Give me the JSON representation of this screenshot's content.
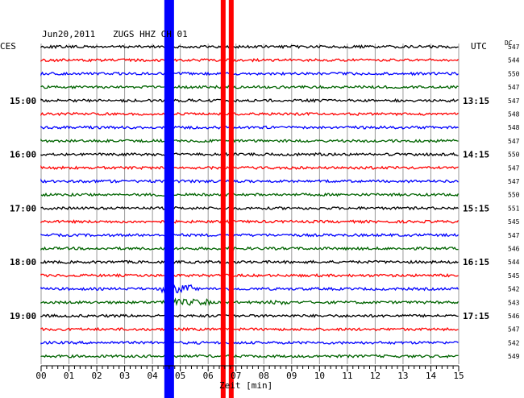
{
  "header": {
    "date": "Jun20,2011",
    "station": "ZUGS HHZ CH 01",
    "left_zone": "CES",
    "right_zone": "UTC",
    "dc_label": "DC"
  },
  "chart_data": {
    "type": "line",
    "title": "Jun20,2011   ZUGS HHZ CH 01",
    "xlabel": "Zeit [min]",
    "xlim": [
      0,
      15
    ],
    "x_ticks": [
      "00",
      "01",
      "02",
      "03",
      "04",
      "05",
      "06",
      "07",
      "08",
      "09",
      "10",
      "11",
      "12",
      "13",
      "14",
      "15"
    ],
    "trace_colors": [
      "#000000",
      "#ff0000",
      "#0000ff",
      "#006400"
    ],
    "left_time_labels": [
      "15:00",
      "16:00",
      "17:00",
      "18:00",
      "19:00"
    ],
    "right_time_labels": [
      "13:15",
      "14:15",
      "15:15",
      "16:15",
      "17:15"
    ],
    "dc_offsets": [
      "547",
      "544",
      "550",
      "547",
      "547",
      "548",
      "548",
      "547",
      "550",
      "547",
      "547",
      "550",
      "551",
      "545",
      "547",
      "546",
      "544",
      "545",
      "542",
      "543",
      "546",
      "547",
      "542",
      "549"
    ],
    "events": [
      {
        "minute": 4.6,
        "color": "#0000ff"
      },
      {
        "minute": 6.8,
        "color": "#ff0000"
      }
    ]
  }
}
